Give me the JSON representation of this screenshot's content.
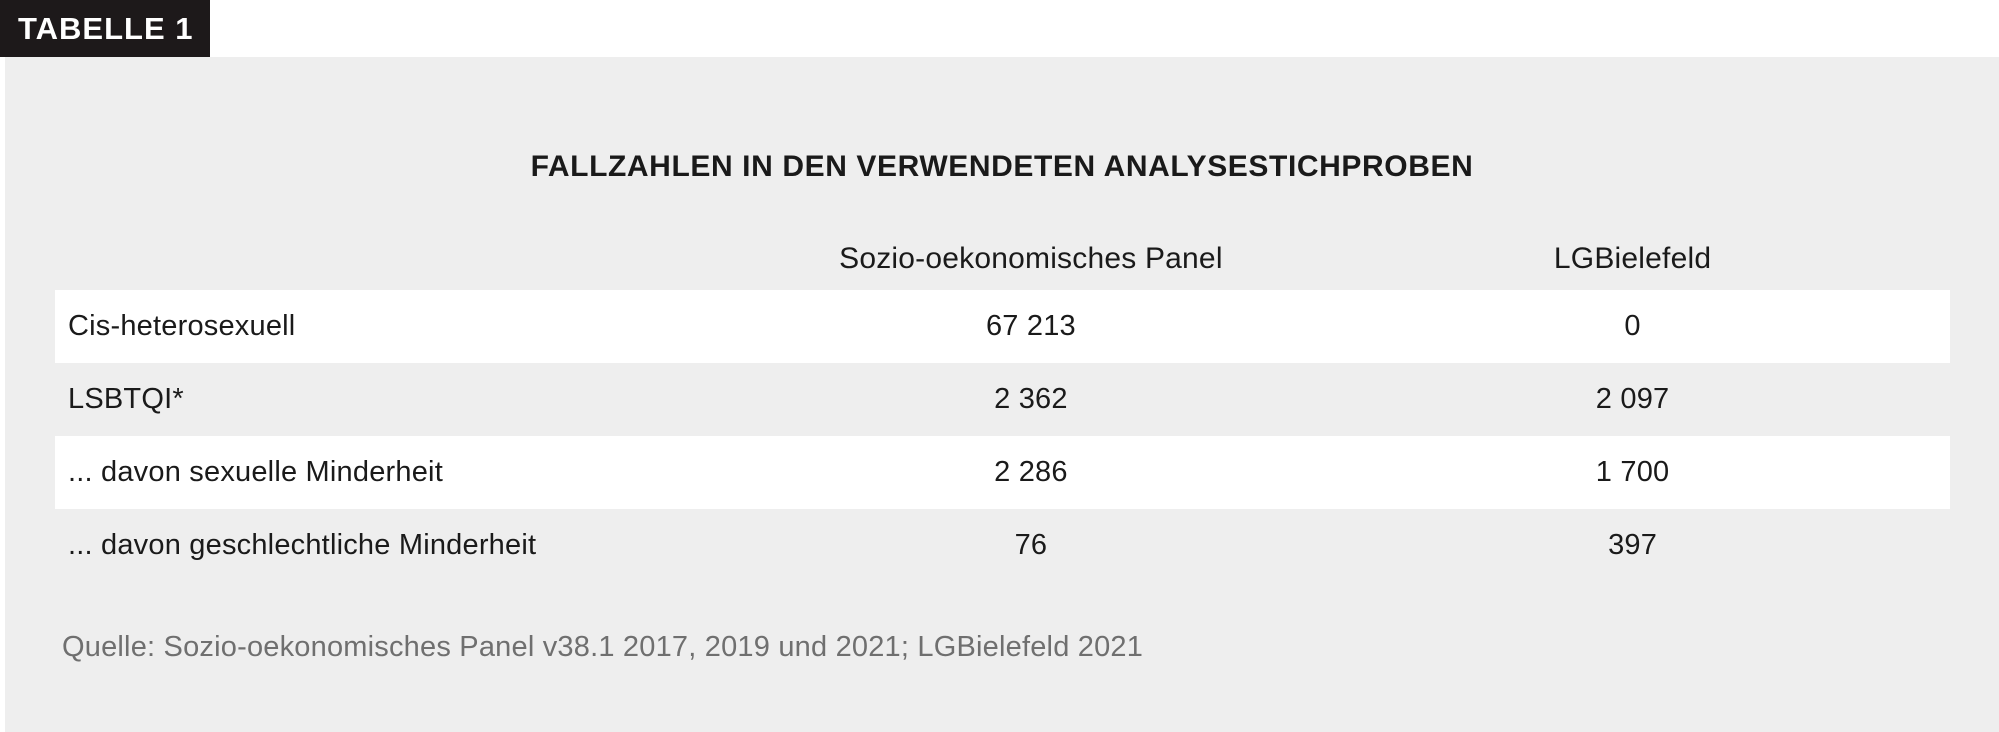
{
  "badge": {
    "label": "TABELLE 1"
  },
  "title": "FALLZAHLEN IN DEN VERWENDETEN ANALYSESTICHPROBEN",
  "table": {
    "columns": [
      "",
      "Sozio-oekonomisches Panel",
      "LGBielefeld"
    ],
    "rows": [
      {
        "label": "Cis-heterosexuell",
        "soep": "67 213",
        "lgb": "0"
      },
      {
        "label": "LSBTQI*",
        "soep": "2 362",
        "lgb": "2 097"
      },
      {
        "label": "... davon sexuelle Minderheit",
        "soep": "2 286",
        "lgb": "1 700"
      },
      {
        "label": "... davon geschlechtliche Minderheit",
        "soep": "76",
        "lgb": "397"
      }
    ]
  },
  "source": "Quelle: Sozio-oekonomisches Panel v38.1 2017, 2019 und 2021; LGBielefeld 2021",
  "colors": {
    "page_background": "#eeeeee",
    "row_highlight": "#ffffff",
    "badge_background": "#1d191a",
    "badge_text": "#ffffff",
    "body_text": "#1a1a1a",
    "source_text": "#6f6f6f"
  },
  "chart_data": {
    "type": "table",
    "title": "FALLZAHLEN IN DEN VERWENDETEN ANALYSESTICHPROBEN",
    "columns": [
      "",
      "Sozio-oekonomisches Panel",
      "LGBielefeld"
    ],
    "rows": [
      [
        "Cis-heterosexuell",
        67213,
        0
      ],
      [
        "LSBTQI*",
        2362,
        2097
      ],
      [
        "... davon sexuelle Minderheit",
        2286,
        1700
      ],
      [
        "... davon geschlechtliche Minderheit",
        76,
        397
      ]
    ],
    "source": "Quelle: Sozio-oekonomisches Panel v38.1 2017, 2019 und 2021; LGBielefeld 2021"
  }
}
